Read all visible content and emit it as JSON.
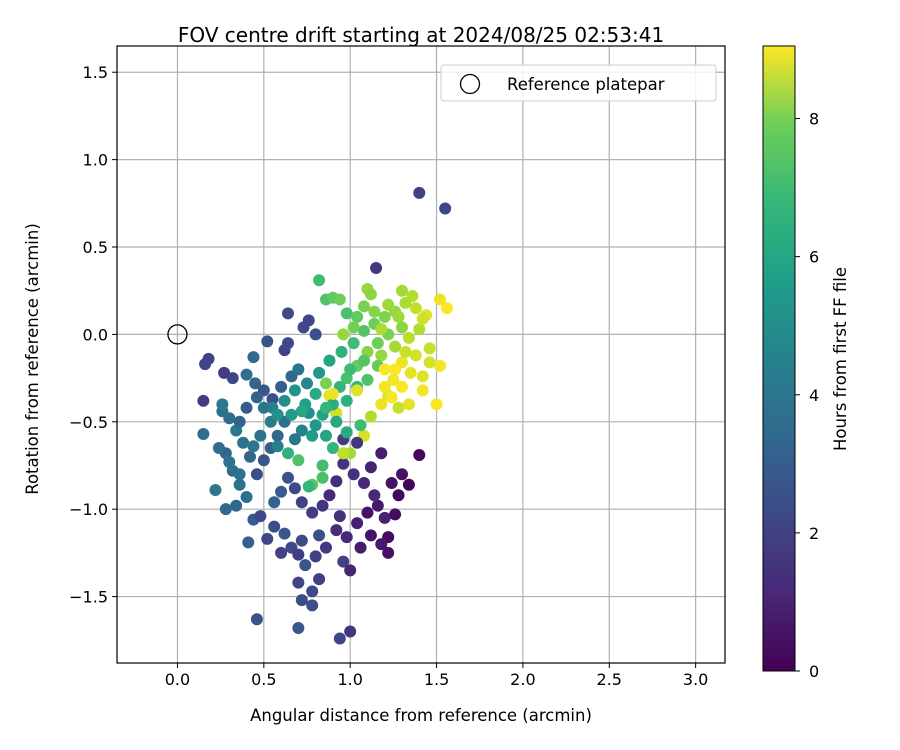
{
  "chart_data": {
    "type": "scatter",
    "title": "FOV centre drift starting at 2024/08/25 02:53:41",
    "xlabel": "Angular distance from reference (arcmin)",
    "ylabel": "Rotation from reference (arcmin)",
    "xlim": [
      -0.35,
      3.17
    ],
    "ylim": [
      -1.88,
      1.65
    ],
    "x_ticks": [
      0.0,
      0.5,
      1.0,
      1.5,
      2.0,
      2.5,
      3.0
    ],
    "x_tick_labels": [
      "0.0",
      "0.5",
      "1.0",
      "1.5",
      "2.0",
      "2.5",
      "3.0"
    ],
    "y_ticks": [
      -1.5,
      -1.0,
      -0.5,
      0.0,
      0.5,
      1.0,
      1.5
    ],
    "y_tick_labels": [
      "−1.5",
      "−1.0",
      "−0.5",
      "0.0",
      "0.5",
      "1.0",
      "1.5"
    ],
    "grid": true,
    "legend": {
      "placement": "top-right",
      "entries": [
        "Reference platepar"
      ]
    },
    "reference_point": {
      "name": "Reference platepar",
      "x": 0.0,
      "y": 0.0,
      "marker": "open-circle"
    },
    "colorbar": {
      "label": "Hours from first FF file",
      "colormap": "viridis",
      "range": [
        0,
        9.05
      ],
      "ticks": [
        0,
        2,
        4,
        6,
        8
      ],
      "tick_labels": [
        "0",
        "2",
        "4",
        "6",
        "8"
      ]
    },
    "series": [
      {
        "points": [
          [
            1.4,
            0.81,
            1.8
          ],
          [
            1.55,
            0.72,
            1.9
          ],
          [
            1.15,
            0.38,
            1.5
          ],
          [
            0.18,
            -0.14,
            1.8
          ],
          [
            0.16,
            -0.17,
            1.9
          ],
          [
            0.27,
            -0.22,
            1.6
          ],
          [
            0.32,
            -0.25,
            1.9
          ],
          [
            0.44,
            -0.13,
            3.1
          ],
          [
            0.52,
            -0.04,
            2.3
          ],
          [
            0.62,
            -0.09,
            1.8
          ],
          [
            0.64,
            -0.05,
            2.0
          ],
          [
            0.64,
            0.12,
            2.1
          ],
          [
            0.76,
            0.08,
            1.9
          ],
          [
            0.73,
            0.04,
            2.0
          ],
          [
            0.8,
            0.0,
            2.2
          ],
          [
            0.15,
            -0.38,
            1.6
          ],
          [
            0.15,
            -0.57,
            3.2
          ],
          [
            0.22,
            -0.89,
            3.6
          ],
          [
            0.4,
            -0.23,
            3.3
          ],
          [
            0.45,
            -0.28,
            2.9
          ],
          [
            0.5,
            -0.32,
            2.5
          ],
          [
            0.55,
            -0.37,
            2.2
          ],
          [
            0.6,
            -0.3,
            2.7
          ],
          [
            0.66,
            -0.24,
            3.0
          ],
          [
            0.7,
            -0.2,
            3.5
          ],
          [
            0.75,
            -0.28,
            4.2
          ],
          [
            0.82,
            -0.22,
            4.8
          ],
          [
            0.88,
            -0.15,
            5.3
          ],
          [
            0.95,
            -0.1,
            5.8
          ],
          [
            1.02,
            -0.05,
            6.2
          ],
          [
            1.08,
            0.02,
            6.6
          ],
          [
            1.14,
            0.06,
            7.0
          ],
          [
            1.2,
            0.1,
            7.3
          ],
          [
            1.26,
            0.13,
            7.6
          ],
          [
            1.32,
            0.18,
            7.9
          ],
          [
            1.38,
            0.15,
            8.2
          ],
          [
            1.44,
            0.11,
            8.6
          ],
          [
            1.52,
            0.2,
            8.8
          ],
          [
            1.56,
            0.15,
            9.0
          ],
          [
            1.52,
            -0.18,
            8.9
          ],
          [
            1.5,
            -0.4,
            9.0
          ],
          [
            1.42,
            -0.32,
            8.9
          ],
          [
            1.35,
            -0.22,
            8.7
          ],
          [
            1.3,
            -0.16,
            8.8
          ],
          [
            1.25,
            -0.26,
            8.9
          ],
          [
            1.22,
            -0.35,
            8.6
          ],
          [
            1.18,
            -0.4,
            8.8
          ],
          [
            1.12,
            -0.47,
            8.0
          ],
          [
            1.08,
            -0.58,
            8.5
          ],
          [
            1.0,
            -0.68,
            7.8
          ],
          [
            0.92,
            -0.45,
            8.4
          ],
          [
            0.88,
            -0.35,
            8.7
          ],
          [
            0.86,
            -0.28,
            7.2
          ],
          [
            0.98,
            -0.25,
            6.4
          ],
          [
            1.04,
            -0.18,
            6.9
          ],
          [
            1.1,
            -0.1,
            7.4
          ],
          [
            1.18,
            -0.12,
            7.6
          ],
          [
            1.26,
            -0.07,
            7.8
          ],
          [
            1.34,
            -0.02,
            8.1
          ],
          [
            1.4,
            0.03,
            8.0
          ],
          [
            1.46,
            -0.08,
            8.3
          ],
          [
            1.3,
            0.04,
            7.5
          ],
          [
            1.22,
            0.0,
            7.2
          ],
          [
            1.16,
            -0.05,
            7.0
          ],
          [
            1.08,
            -0.15,
            6.6
          ],
          [
            1.0,
            -0.2,
            6.2
          ],
          [
            0.94,
            -0.3,
            5.9
          ],
          [
            0.9,
            -0.4,
            5.6
          ],
          [
            0.84,
            -0.46,
            5.2
          ],
          [
            0.8,
            -0.52,
            4.8
          ],
          [
            0.76,
            -0.45,
            4.4
          ],
          [
            0.72,
            -0.55,
            4.0
          ],
          [
            0.68,
            -0.6,
            3.6
          ],
          [
            0.62,
            -0.5,
            3.3
          ],
          [
            0.58,
            -0.58,
            3.0
          ],
          [
            0.54,
            -0.65,
            2.7
          ],
          [
            0.5,
            -0.72,
            2.4
          ],
          [
            0.46,
            -0.8,
            2.2
          ],
          [
            0.42,
            -0.7,
            3.0
          ],
          [
            0.38,
            -0.62,
            3.4
          ],
          [
            0.34,
            -0.55,
            3.7
          ],
          [
            0.3,
            -0.48,
            3.2
          ],
          [
            0.28,
            -0.68,
            3.0
          ],
          [
            0.32,
            -0.78,
            3.3
          ],
          [
            0.36,
            -0.86,
            3.5
          ],
          [
            0.4,
            -0.93,
            3.3
          ],
          [
            0.34,
            -0.98,
            3.0
          ],
          [
            0.28,
            -1.0,
            3.1
          ],
          [
            0.44,
            -1.06,
            2.6
          ],
          [
            0.48,
            -1.04,
            2.0
          ],
          [
            0.56,
            -1.1,
            2.2
          ],
          [
            0.52,
            -1.17,
            1.9
          ],
          [
            0.62,
            -1.14,
            2.4
          ],
          [
            0.66,
            -1.22,
            2.0
          ],
          [
            0.6,
            -1.25,
            1.8
          ],
          [
            0.72,
            -1.18,
            2.1
          ],
          [
            0.7,
            -1.26,
            1.6
          ],
          [
            0.74,
            -1.32,
            2.4
          ],
          [
            0.8,
            -1.27,
            1.7
          ],
          [
            0.86,
            -1.22,
            1.5
          ],
          [
            0.82,
            -1.15,
            2.2
          ],
          [
            0.92,
            -1.12,
            1.2
          ],
          [
            0.96,
            -1.3,
            1.8
          ],
          [
            1.04,
            -1.08,
            0.8
          ],
          [
            1.1,
            -1.02,
            0.4
          ],
          [
            1.16,
            -0.98,
            0.6
          ],
          [
            1.2,
            -1.05,
            0.8
          ],
          [
            1.22,
            -1.16,
            0.3
          ],
          [
            1.26,
            -1.03,
            0.3
          ],
          [
            1.28,
            -0.92,
            0.2
          ],
          [
            1.24,
            -0.85,
            0.5
          ],
          [
            1.3,
            -0.8,
            0.4
          ],
          [
            1.34,
            -0.86,
            0.1
          ],
          [
            1.4,
            -0.69,
            0.2
          ],
          [
            1.14,
            -0.92,
            1.1
          ],
          [
            1.08,
            -0.85,
            1.0
          ],
          [
            1.02,
            -0.8,
            1.3
          ],
          [
            0.96,
            -0.74,
            1.4
          ],
          [
            0.92,
            -0.84,
            1.2
          ],
          [
            0.88,
            -0.92,
            1.0
          ],
          [
            0.84,
            -0.98,
            1.4
          ],
          [
            0.78,
            -1.02,
            1.6
          ],
          [
            0.72,
            -0.96,
            1.8
          ],
          [
            0.68,
            -0.88,
            2.0
          ],
          [
            0.64,
            -0.82,
            2.3
          ],
          [
            0.6,
            -0.9,
            2.6
          ],
          [
            0.56,
            -0.96,
            2.8
          ],
          [
            1.0,
            -1.35,
            0.9
          ],
          [
            1.06,
            -1.22,
            0.7
          ],
          [
            1.12,
            -1.15,
            0.5
          ],
          [
            1.18,
            -1.2,
            0.6
          ],
          [
            1.22,
            -1.25,
            0.4
          ],
          [
            0.98,
            -1.16,
            1.1
          ],
          [
            0.94,
            -1.04,
            1.3
          ],
          [
            1.12,
            -0.76,
            0.9
          ],
          [
            1.18,
            -0.68,
            0.7
          ],
          [
            1.04,
            -0.62,
            1.4
          ],
          [
            0.96,
            -0.6,
            1.6
          ],
          [
            0.7,
            -1.42,
            1.9
          ],
          [
            0.72,
            -1.52,
            2.1
          ],
          [
            0.78,
            -1.47,
            2.0
          ],
          [
            0.82,
            -1.4,
            1.7
          ],
          [
            0.78,
            -1.55,
            2.2
          ],
          [
            0.46,
            -1.63,
            2.3
          ],
          [
            0.7,
            -1.68,
            2.5
          ],
          [
            0.94,
            -1.74,
            1.9
          ],
          [
            1.0,
            -1.7,
            1.4
          ],
          [
            0.41,
            -1.19,
            2.8
          ],
          [
            0.64,
            -0.68,
            5.8
          ],
          [
            0.7,
            -0.72,
            6.5
          ],
          [
            0.78,
            -0.86,
            6.7
          ],
          [
            0.84,
            -0.75,
            6.3
          ],
          [
            0.9,
            -0.65,
            5.9
          ],
          [
            0.55,
            -0.42,
            4.0
          ],
          [
            0.62,
            -0.38,
            4.4
          ],
          [
            0.68,
            -0.32,
            4.7
          ],
          [
            0.74,
            -0.4,
            5.1
          ],
          [
            0.8,
            -0.34,
            5.5
          ],
          [
            0.86,
            -0.42,
            6.0
          ],
          [
            0.92,
            -0.5,
            5.4
          ],
          [
            0.98,
            -0.38,
            5.7
          ],
          [
            1.04,
            -0.3,
            6.0
          ],
          [
            1.1,
            -0.26,
            6.5
          ],
          [
            1.16,
            -0.18,
            6.9
          ],
          [
            0.82,
            0.31,
            6.2
          ],
          [
            0.86,
            0.2,
            6.5
          ],
          [
            0.9,
            0.21,
            6.8
          ],
          [
            0.94,
            0.2,
            7.0
          ],
          [
            0.98,
            0.12,
            6.4
          ],
          [
            1.04,
            0.1,
            6.8
          ],
          [
            1.08,
            0.16,
            7.2
          ],
          [
            1.1,
            0.26,
            7.6
          ],
          [
            1.12,
            0.23,
            7.5
          ],
          [
            1.22,
            0.17,
            7.7
          ],
          [
            1.3,
            0.25,
            7.8
          ],
          [
            1.36,
            0.22,
            8.0
          ],
          [
            1.42,
            0.09,
            8.4
          ],
          [
            0.84,
            -0.82,
            6.4
          ],
          [
            0.76,
            -0.87,
            6.0
          ],
          [
            0.96,
            -0.68,
            8.2
          ],
          [
            0.98,
            -0.56,
            5.5
          ],
          [
            1.06,
            -0.52,
            6.2
          ],
          [
            0.26,
            -0.44,
            3.3
          ],
          [
            0.24,
            -0.65,
            3.2
          ],
          [
            0.3,
            -0.73,
            3.4
          ],
          [
            0.36,
            -0.8,
            3.5
          ],
          [
            0.26,
            -0.4,
            3.6
          ],
          [
            0.46,
            -0.36,
            2.9
          ],
          [
            0.5,
            -0.42,
            3.6
          ],
          [
            0.54,
            -0.5,
            3.8
          ],
          [
            0.58,
            -0.64,
            3.9
          ],
          [
            0.48,
            -0.58,
            3.5
          ],
          [
            0.44,
            -0.64,
            3.6
          ],
          [
            0.4,
            -0.42,
            2.6
          ],
          [
            0.36,
            -0.5,
            2.9
          ],
          [
            0.58,
            -0.46,
            4.6
          ],
          [
            0.66,
            -0.46,
            4.9
          ],
          [
            0.72,
            -0.44,
            5.4
          ],
          [
            0.78,
            -0.58,
            5.0
          ],
          [
            0.86,
            -0.58,
            5.3
          ],
          [
            1.2,
            -0.2,
            9.0
          ],
          [
            1.26,
            -0.2,
            9.0
          ],
          [
            1.3,
            -0.3,
            9.0
          ],
          [
            1.24,
            -0.36,
            9.0
          ],
          [
            1.2,
            -0.3,
            8.9
          ],
          [
            1.34,
            -0.4,
            8.7
          ],
          [
            1.28,
            -0.42,
            8.3
          ],
          [
            1.42,
            -0.24,
            8.6
          ],
          [
            1.46,
            -0.16,
            8.5
          ],
          [
            1.38,
            -0.12,
            8.5
          ],
          [
            1.32,
            -0.1,
            8.3
          ],
          [
            1.04,
            -0.32,
            8.6
          ],
          [
            0.9,
            -0.34,
            8.8
          ],
          [
            0.96,
            0.0,
            7.6
          ],
          [
            1.02,
            0.04,
            7.1
          ],
          [
            1.18,
            0.03,
            7.9
          ],
          [
            1.14,
            0.13,
            7.4
          ],
          [
            1.28,
            0.1,
            7.7
          ]
        ]
      }
    ]
  }
}
